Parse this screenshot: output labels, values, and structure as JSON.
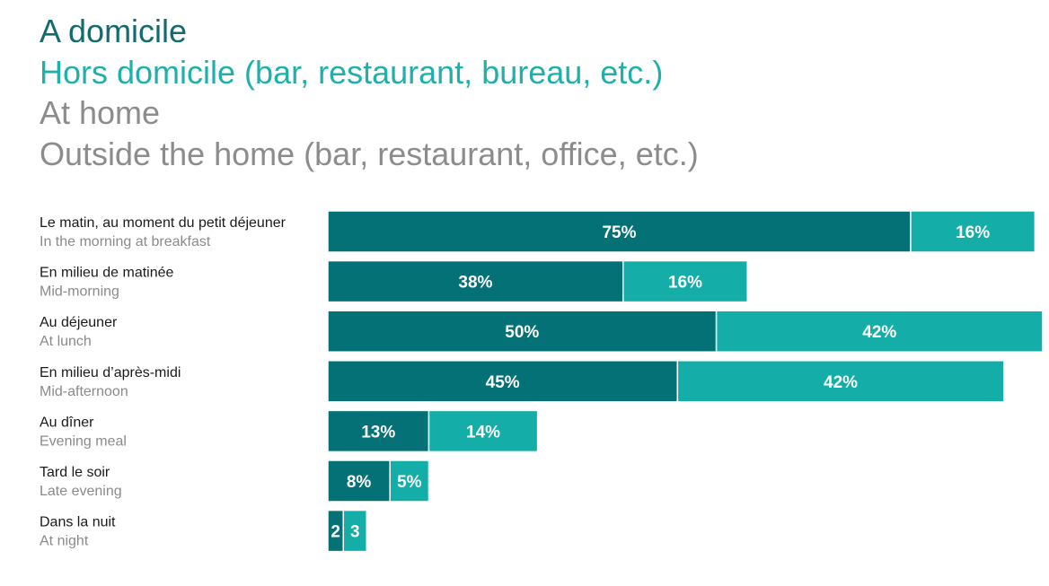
{
  "chart_data": {
    "type": "bar",
    "orientation": "horizontal",
    "stacked": true,
    "legend": {
      "position": "top-left",
      "entries": [
        "A domicile",
        "Hors domicile (bar, restaurant, bureau, etc.)",
        "At home",
        "Outside the home (bar, restaurant, office, etc.)"
      ]
    },
    "categories": [
      {
        "fr": "Le matin, au moment du petit déjeuner",
        "en": "In the morning at breakfast"
      },
      {
        "fr": "En milieu de matinée",
        "en": "Mid-morning"
      },
      {
        "fr": "Au déjeuner",
        "en": "At lunch"
      },
      {
        "fr": "En milieu d’après-midi",
        "en": "Mid-afternoon"
      },
      {
        "fr": "Au dîner",
        "en": "Evening meal"
      },
      {
        "fr": "Tard le soir",
        "en": "Late evening"
      },
      {
        "fr": "Dans la nuit",
        "en": "At night"
      }
    ],
    "series": [
      {
        "name": "A domicile",
        "color": "#037176",
        "values": [
          75,
          38,
          50,
          45,
          13,
          8,
          2
        ],
        "labels": [
          "75%",
          "38%",
          "50%",
          "45%",
          "13%",
          "8%",
          "2"
        ]
      },
      {
        "name": "Hors domicile (bar, restaurant, bureau, etc.)",
        "color": "#14ada8",
        "values": [
          16,
          16,
          42,
          42,
          14,
          5,
          3
        ],
        "labels": [
          "16%",
          "16%",
          "42%",
          "42%",
          "14%",
          "5%",
          "3"
        ]
      }
    ],
    "xlim": [
      0,
      92
    ],
    "grid": false
  }
}
